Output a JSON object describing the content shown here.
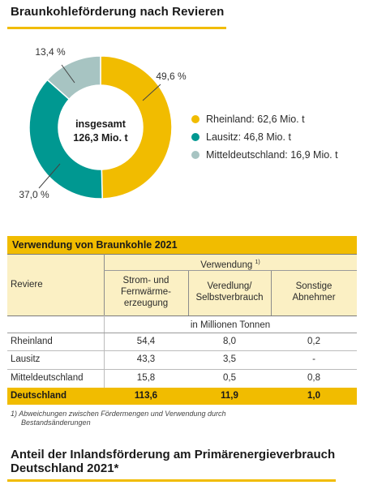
{
  "title": "Braunkohleförderung nach Revieren",
  "chart_data": {
    "type": "pie",
    "title": "Braunkohleförderung nach Revieren",
    "center_label": [
      "insgesamt",
      "126,3 Mio. t"
    ],
    "slices": [
      {
        "name": "Rheinland",
        "value": 62.6,
        "percent": 49.6,
        "percent_label": "49,6 %",
        "legend": "Rheinland: 62,6 Mio. t",
        "color": "#f1bc00"
      },
      {
        "name": "Lausitz",
        "value": 46.8,
        "percent": 37.0,
        "percent_label": "37,0 %",
        "legend": "Lausitz: 46,8 Mio. t",
        "color": "#009891"
      },
      {
        "name": "Mitteldeutschland",
        "value": 16.9,
        "percent": 13.4,
        "percent_label": "13,4 %",
        "legend": "Mitteldeutschland: 16,9 Mio. t",
        "color": "#a7c4c2"
      }
    ],
    "legend_position": "right"
  },
  "table": {
    "title": "Verwendung von Braunkohle 2021",
    "row_header": "Reviere",
    "group_header": "Verwendung",
    "group_footnote_mark": "1)",
    "columns": [
      [
        "Strom- und",
        "Fernwärme-",
        "erzeugung"
      ],
      [
        "Veredlung/",
        "Selbstverbrauch"
      ],
      [
        "Sonstige",
        "Abnehmer"
      ]
    ],
    "unit": "in Millionen Tonnen",
    "rows": [
      {
        "label": "Rheinland",
        "values": [
          "54,4",
          "8,0",
          "0,2"
        ]
      },
      {
        "label": "Lausitz",
        "values": [
          "43,3",
          "3,5",
          "-"
        ]
      },
      {
        "label": "Mitteldeutschland",
        "values": [
          "15,8",
          "0,5",
          "0,8"
        ]
      }
    ],
    "total": {
      "label": "Deutschland",
      "values": [
        "113,6",
        "11,9",
        "1,0"
      ]
    }
  },
  "footnote": {
    "mark": "1)",
    "line1": "Abweichungen zwischen Fördermengen und Verwendung durch",
    "line2": "Bestandsänderungen"
  },
  "section2": {
    "title_line1": "Anteil der Inlandsförderung am Primärenergieverbrauch",
    "title_line2": "Deutschland 2021*"
  },
  "colors": {
    "accent": "#f1bc00",
    "accent_light": "#fbf0c4"
  }
}
